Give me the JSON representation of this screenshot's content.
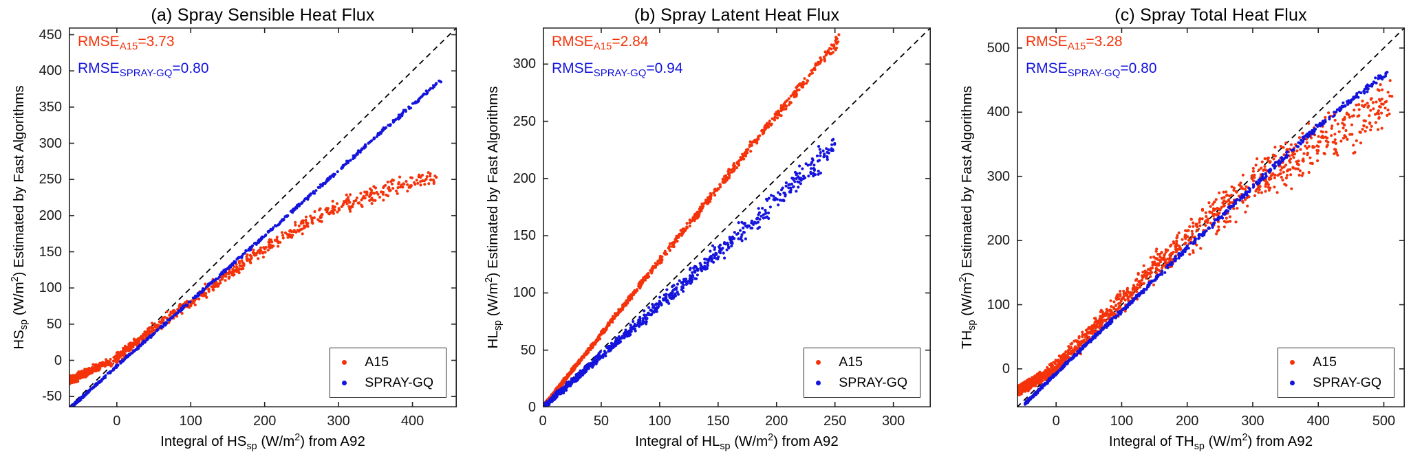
{
  "figure": {
    "background": "#ffffff",
    "frame_color": "#222222",
    "identity_line_color": "#000000"
  },
  "chart_data": [
    {
      "type": "scatter",
      "title": "(a) Spray Sensible Heat Flux",
      "xlabel_parts": [
        "Integral of HS",
        "sp",
        " (W/m",
        "2",
        ") from A92"
      ],
      "ylabel_parts": [
        "HS",
        "sp",
        " (W/m",
        "2",
        ") Estimated by Fast Algorithms"
      ],
      "x_range": [
        -65,
        460
      ],
      "y_range": [
        -65,
        460
      ],
      "xticks": [
        0,
        100,
        200,
        300,
        400
      ],
      "yticks": [
        -50,
        0,
        50,
        100,
        150,
        200,
        250,
        300,
        350,
        400,
        450
      ],
      "grid": false,
      "identity_line": {
        "style": "dashed",
        "color": "#000000"
      },
      "annotations": [
        {
          "pre": "RMSE",
          "sub": "A15",
          "val": "=3.73",
          "color": "#f5330a"
        },
        {
          "pre": "RMSE",
          "sub": "SPRAY-GQ",
          "val": "=0.80",
          "color": "#1414dd"
        }
      ],
      "legend": {
        "position": "bottom-right",
        "entries": [
          {
            "label": "A15",
            "color": "#f5330a"
          },
          {
            "label": "SPRAY-GQ",
            "color": "#1414dd"
          }
        ]
      },
      "series": [
        {
          "name": "A15",
          "color": "#f5330a",
          "n": 950,
          "x_min": -62,
          "x_max": 432,
          "x_power": 2.0,
          "x_jitter": 3,
          "trend": [
            [
              -62,
              -27
            ],
            [
              0,
              3
            ],
            [
              50,
              45
            ],
            [
              100,
              80
            ],
            [
              150,
              118
            ],
            [
              200,
              155
            ],
            [
              250,
              185
            ],
            [
              300,
              212
            ],
            [
              350,
              232
            ],
            [
              400,
              247
            ],
            [
              432,
              256
            ]
          ],
          "spread": [
            5,
            13
          ]
        },
        {
          "name": "SPRAY-GQ",
          "color": "#1414dd",
          "n": 600,
          "x_min": -64,
          "x_max": 438,
          "x_power": 1.6,
          "x_jitter": 2,
          "trend": [
            [
              -64,
              -67
            ],
            [
              0,
              -8
            ],
            [
              100,
              82
            ],
            [
              200,
              172
            ],
            [
              300,
              263
            ],
            [
              438,
              387
            ]
          ],
          "spread": [
            1.5,
            3
          ]
        }
      ]
    },
    {
      "type": "scatter",
      "title": "(b) Spray Latent Heat Flux",
      "xlabel_parts": [
        "Integral of HL",
        "sp",
        " (W/m",
        "2",
        ") from A92"
      ],
      "ylabel_parts": [
        "HL",
        "sp",
        " (W/m",
        "2",
        ") Estimated by Fast Algorithms"
      ],
      "x_range": [
        0,
        332
      ],
      "y_range": [
        0,
        332
      ],
      "xticks": [
        0,
        50,
        100,
        150,
        200,
        250,
        300
      ],
      "yticks": [
        0,
        50,
        100,
        150,
        200,
        250,
        300
      ],
      "grid": false,
      "identity_line": {
        "style": "dashed",
        "color": "#000000"
      },
      "annotations": [
        {
          "pre": "RMSE",
          "sub": "A15",
          "val": "=2.84",
          "color": "#f5330a"
        },
        {
          "pre": "RMSE",
          "sub": "SPRAY-GQ",
          "val": "=0.94",
          "color": "#1414dd"
        }
      ],
      "legend": {
        "position": "bottom-right",
        "entries": [
          {
            "label": "A15",
            "color": "#f5330a"
          },
          {
            "label": "SPRAY-GQ",
            "color": "#1414dd"
          }
        ]
      },
      "series": [
        {
          "name": "A15",
          "color": "#f5330a",
          "n": 1200,
          "x_min": 0,
          "x_max": 253,
          "x_power": 2.3,
          "x_jitter": 2,
          "trend": [
            [
              0,
              0
            ],
            [
              60,
              77
            ],
            [
              125,
              160
            ],
            [
              190,
              243
            ],
            [
              253,
              321
            ]
          ],
          "spread": [
            1.5,
            5
          ]
        },
        {
          "name": "SPRAY-GQ",
          "color": "#1414dd",
          "n": 1000,
          "x_min": 0,
          "x_max": 253,
          "x_power": 2.3,
          "x_jitter": 2,
          "trend": [
            [
              0,
              0
            ],
            [
              60,
              54
            ],
            [
              125,
              112
            ],
            [
              190,
              172
            ],
            [
              253,
              233
            ]
          ],
          "spread": [
            2,
            12
          ]
        }
      ]
    },
    {
      "type": "scatter",
      "title": "(c) Spray Total Heat Flux",
      "xlabel_parts": [
        "Integral of TH",
        "sp",
        " (W/m",
        "2",
        ") from A92"
      ],
      "ylabel_parts": [
        "TH",
        "sp",
        " (W/m",
        "2",
        ") Estimated by Fast Algorithms"
      ],
      "x_range": [
        -60,
        532
      ],
      "y_range": [
        -60,
        532
      ],
      "xticks": [
        0,
        100,
        200,
        300,
        400,
        500
      ],
      "yticks": [
        0,
        100,
        200,
        300,
        400,
        500
      ],
      "grid": false,
      "identity_line": {
        "style": "dashed",
        "color": "#000000"
      },
      "annotations": [
        {
          "pre": "RMSE",
          "sub": "A15",
          "val": "=3.28",
          "color": "#f5330a"
        },
        {
          "pre": "RMSE",
          "sub": "SPRAY-GQ",
          "val": "=0.80",
          "color": "#1414dd"
        }
      ],
      "legend": {
        "position": "bottom-right",
        "entries": [
          {
            "label": "A15",
            "color": "#f5330a"
          },
          {
            "label": "SPRAY-GQ",
            "color": "#1414dd"
          }
        ]
      },
      "series": [
        {
          "name": "A15",
          "color": "#f5330a",
          "n": 1400,
          "x_min": -55,
          "x_max": 512,
          "x_power": 1.9,
          "x_jitter": 4,
          "trend": [
            [
              -55,
              -32
            ],
            [
              0,
              3
            ],
            [
              100,
              105
            ],
            [
              200,
              204
            ],
            [
              300,
              287
            ],
            [
              400,
              352
            ],
            [
              512,
              415
            ]
          ],
          "spread": [
            7,
            46
          ]
        },
        {
          "name": "SPRAY-GQ",
          "color": "#1414dd",
          "n": 750,
          "x_min": -45,
          "x_max": 505,
          "x_power": 1.8,
          "x_jitter": 3,
          "trend": [
            [
              -45,
              -52
            ],
            [
              0,
              -7
            ],
            [
              100,
              90
            ],
            [
              200,
              188
            ],
            [
              300,
              284
            ],
            [
              400,
              378
            ],
            [
              505,
              462
            ]
          ],
          "spread": [
            2,
            6
          ]
        }
      ]
    }
  ]
}
